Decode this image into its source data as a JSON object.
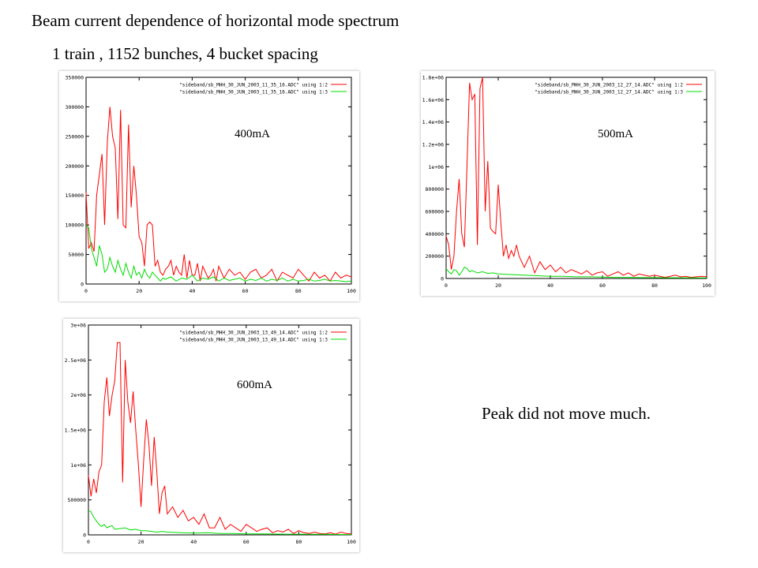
{
  "slide": {
    "title": "Beam current dependence of horizontal mode spectrum",
    "subtitle": "1 train , 1152 bunches, 4 bucket spacing",
    "note": "Peak did not move much."
  },
  "colors": {
    "series_1_2": "#ff0000",
    "series_1_3": "#00dd00",
    "axis": "#000000"
  },
  "chart_data": [
    {
      "type": "line",
      "label": "400mA",
      "xlim": [
        0,
        100
      ],
      "ylim": [
        0,
        350000
      ],
      "xticks": [
        "0",
        "20",
        "40",
        "60",
        "80",
        "100"
      ],
      "yticks": [
        "0",
        "50000",
        "100000",
        "150000",
        "200000",
        "250000",
        "300000",
        "350000"
      ],
      "legend_position": "top-right",
      "series": [
        {
          "name": "\"sideband/sb_MHH_30_JUN_2003_11_35_16.ADC\"  using 1:2",
          "x": [
            0,
            1,
            2,
            3,
            4,
            5,
            6,
            7,
            8,
            9,
            10,
            11,
            12,
            13,
            14,
            15,
            16,
            17,
            18,
            19,
            20,
            21,
            22,
            23,
            24,
            25,
            26,
            27,
            28,
            29,
            30,
            31,
            32,
            33,
            34,
            35,
            36,
            37,
            38,
            39,
            40,
            41,
            42,
            43,
            44,
            45,
            46,
            47,
            48,
            49,
            50,
            52,
            54,
            56,
            58,
            60,
            62,
            64,
            66,
            68,
            70,
            72,
            74,
            76,
            78,
            80,
            82,
            84,
            86,
            88,
            90,
            92,
            94,
            96,
            98,
            100
          ],
          "y": [
            155000,
            60000,
            70000,
            55000,
            150000,
            185000,
            220000,
            100000,
            240000,
            300000,
            250000,
            230000,
            110000,
            295000,
            100000,
            95000,
            270000,
            130000,
            200000,
            150000,
            80000,
            70000,
            30000,
            100000,
            105000,
            100000,
            30000,
            40000,
            20000,
            15000,
            25000,
            30000,
            40000,
            15000,
            30000,
            20000,
            15000,
            50000,
            10000,
            40000,
            15000,
            15000,
            35000,
            5000,
            30000,
            20000,
            10000,
            15000,
            25000,
            5000,
            30000,
            10000,
            25000,
            15000,
            20000,
            8000,
            20000,
            25000,
            10000,
            15000,
            25000,
            5000,
            20000,
            15000,
            10000,
            25000,
            15000,
            5000,
            20000,
            10000,
            15000,
            5000,
            20000,
            10000,
            15000,
            12000
          ]
        },
        {
          "name": "\"sideband/sb_MHH_30_JUN_2003_11_35_16.ADC\"  using 1:3",
          "x": [
            0,
            1,
            2,
            3,
            4,
            5,
            6,
            7,
            8,
            9,
            10,
            11,
            12,
            13,
            14,
            15,
            16,
            17,
            18,
            19,
            20,
            21,
            22,
            23,
            24,
            25,
            26,
            27,
            28,
            29,
            30,
            32,
            34,
            36,
            38,
            40,
            42,
            44,
            46,
            48,
            50,
            52,
            54,
            56,
            58,
            60,
            62,
            64,
            66,
            68,
            70,
            72,
            74,
            76,
            78,
            80,
            82,
            84,
            86,
            88,
            90,
            92,
            94,
            96,
            98,
            100
          ],
          "y": [
            100000,
            95000,
            60000,
            45000,
            30000,
            65000,
            50000,
            20000,
            25000,
            45000,
            30000,
            20000,
            40000,
            25000,
            15000,
            35000,
            20000,
            10000,
            30000,
            15000,
            20000,
            10000,
            25000,
            15000,
            10000,
            20000,
            15000,
            10000,
            5000,
            10000,
            8000,
            12000,
            5000,
            10000,
            8000,
            15000,
            5000,
            10000,
            8000,
            12000,
            5000,
            10000,
            6000,
            8000,
            10000,
            5000,
            8000,
            6000,
            10000,
            5000,
            8000,
            6000,
            10000,
            5000,
            8000,
            5000,
            6000,
            8000,
            5000,
            6000,
            8000,
            5000,
            6000,
            5000,
            4000,
            5000
          ]
        }
      ]
    },
    {
      "type": "line",
      "label": "500mA",
      "xlim": [
        0,
        100
      ],
      "ylim": [
        0,
        1800000
      ],
      "xticks": [
        "0",
        "20",
        "40",
        "60",
        "80",
        "100"
      ],
      "yticks": [
        "0",
        "200000",
        "400000",
        "600000",
        "800000",
        "1e+06",
        "1.2e+06",
        "1.4e+06",
        "1.6e+06",
        "1.8e+06"
      ],
      "legend_position": "top-right",
      "series": [
        {
          "name": "\"sideband/sb_MHH_30_JUN_2003_12_27_14.ADC\"  using 1:2",
          "x": [
            0,
            1,
            2,
            3,
            4,
            5,
            6,
            7,
            8,
            9,
            10,
            11,
            12,
            13,
            14,
            15,
            16,
            17,
            18,
            19,
            20,
            21,
            22,
            23,
            24,
            25,
            26,
            27,
            28,
            29,
            30,
            32,
            34,
            36,
            38,
            40,
            42,
            44,
            46,
            48,
            50,
            52,
            54,
            56,
            58,
            60,
            62,
            64,
            66,
            68,
            70,
            72,
            74,
            76,
            78,
            80,
            82,
            84,
            86,
            88,
            90,
            92,
            94,
            96,
            98,
            100
          ],
          "y": [
            380000,
            300000,
            80000,
            200000,
            600000,
            890000,
            400000,
            280000,
            1000000,
            1750000,
            1600000,
            1650000,
            300000,
            1700000,
            1800000,
            600000,
            1050000,
            450000,
            420000,
            400000,
            840000,
            500000,
            200000,
            300000,
            180000,
            250000,
            200000,
            300000,
            200000,
            150000,
            100000,
            200000,
            50000,
            150000,
            80000,
            120000,
            60000,
            100000,
            50000,
            80000,
            60000,
            40000,
            70000,
            30000,
            50000,
            60000,
            20000,
            40000,
            60000,
            30000,
            50000,
            20000,
            40000,
            30000,
            20000,
            30000,
            20000,
            10000,
            20000,
            30000,
            15000,
            20000,
            10000,
            15000,
            20000,
            15000
          ]
        },
        {
          "name": "\"sideband/sb_MHH_30_JUN_2003_12_27_14.ADC\"  using 1:3",
          "x": [
            0,
            1,
            2,
            3,
            4,
            5,
            6,
            7,
            8,
            9,
            10,
            12,
            14,
            16,
            18,
            20,
            25,
            30,
            35,
            40,
            45,
            50,
            55,
            60,
            65,
            70,
            75,
            80,
            85,
            90,
            95,
            100
          ],
          "y": [
            90000,
            60000,
            40000,
            80000,
            70000,
            30000,
            60000,
            100000,
            90000,
            60000,
            70000,
            50000,
            60000,
            45000,
            50000,
            40000,
            35000,
            30000,
            25000,
            20000,
            20000,
            15000,
            15000,
            12000,
            10000,
            10000,
            8000,
            8000,
            6000,
            6000,
            5000,
            5000
          ]
        }
      ]
    },
    {
      "type": "line",
      "label": "600mA",
      "xlim": [
        0,
        100
      ],
      "ylim": [
        0,
        3000000
      ],
      "xticks": [
        "0",
        "20",
        "40",
        "60",
        "80",
        "100"
      ],
      "yticks": [
        "0",
        "500000",
        "1e+06",
        "1.5e+06",
        "2e+06",
        "2.5e+06",
        "3e+06"
      ],
      "legend_position": "top-right",
      "series": [
        {
          "name": "\"sideband/sb_MHH_30_JUN_2003_13_49_14.ADC\"  using 1:2",
          "x": [
            0,
            1,
            2,
            3,
            4,
            5,
            6,
            7,
            8,
            9,
            10,
            11,
            12,
            13,
            14,
            15,
            16,
            17,
            18,
            19,
            20,
            21,
            22,
            23,
            24,
            25,
            26,
            27,
            28,
            29,
            30,
            32,
            34,
            36,
            38,
            40,
            42,
            44,
            46,
            48,
            50,
            52,
            54,
            56,
            58,
            60,
            62,
            64,
            66,
            68,
            70,
            72,
            74,
            76,
            78,
            80,
            82,
            84,
            86,
            88,
            90,
            92,
            94,
            96,
            98,
            100
          ],
          "y": [
            850000,
            550000,
            800000,
            600000,
            900000,
            1000000,
            1900000,
            2250000,
            1700000,
            2000000,
            2200000,
            2750000,
            2750000,
            750000,
            2500000,
            1900000,
            1600000,
            2050000,
            1500000,
            1000000,
            400000,
            1050000,
            1650000,
            1300000,
            700000,
            1400000,
            900000,
            300000,
            600000,
            700000,
            300000,
            400000,
            250000,
            350000,
            200000,
            250000,
            150000,
            300000,
            100000,
            100000,
            250000,
            80000,
            150000,
            100000,
            50000,
            150000,
            100000,
            50000,
            80000,
            100000,
            30000,
            60000,
            40000,
            80000,
            20000,
            60000,
            30000,
            20000,
            40000,
            20000,
            15000,
            30000,
            10000,
            40000,
            20000,
            15000
          ]
        },
        {
          "name": "\"sideband/sb_MHH_30_JUN_2003_13_49_14.ADC\"  using 1:3",
          "x": [
            0,
            1,
            2,
            3,
            4,
            5,
            6,
            7,
            8,
            9,
            10,
            12,
            14,
            16,
            18,
            20,
            22,
            24,
            26,
            28,
            30,
            35,
            40,
            45,
            50,
            55,
            60,
            65,
            70,
            75,
            80,
            85,
            90,
            95,
            100
          ],
          "y": [
            350000,
            330000,
            250000,
            200000,
            150000,
            120000,
            150000,
            100000,
            120000,
            130000,
            80000,
            90000,
            100000,
            70000,
            80000,
            60000,
            60000,
            50000,
            40000,
            50000,
            40000,
            30000,
            25000,
            30000,
            20000,
            20000,
            15000,
            15000,
            12000,
            10000,
            10000,
            8000,
            8000,
            6000,
            5000
          ]
        }
      ]
    }
  ]
}
